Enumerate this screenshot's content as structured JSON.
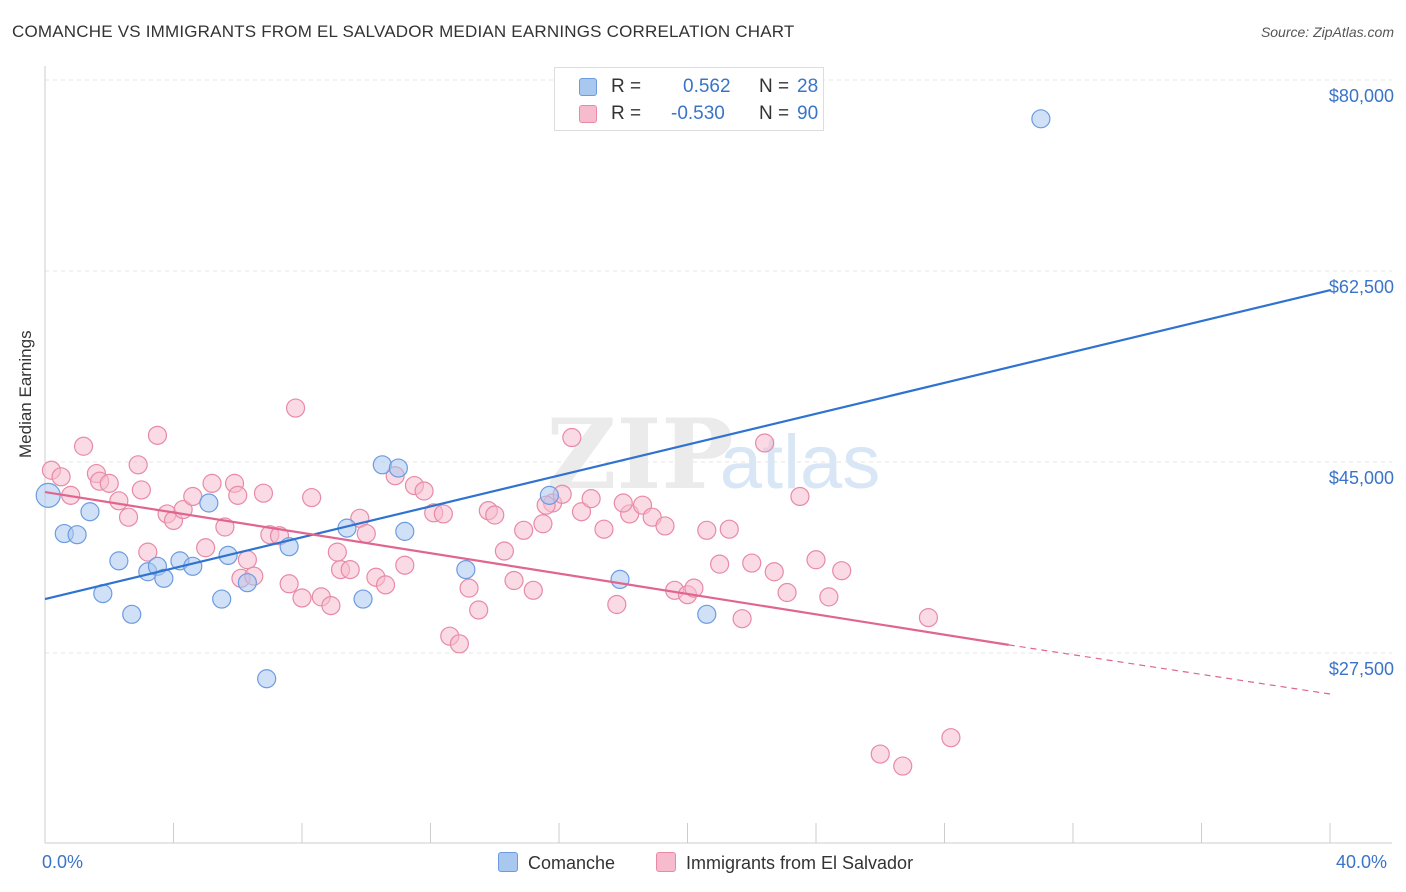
{
  "title": "COMANCHE VS IMMIGRANTS FROM EL SALVADOR MEDIAN EARNINGS CORRELATION CHART",
  "source": "Source: ZipAtlas.com",
  "watermark": {
    "zip": "ZIP",
    "atlas": "atlas"
  },
  "legend": {
    "rows": [
      {
        "r_label": "R =",
        "r_value": "0.562",
        "n_label": "N =",
        "n_value": "28",
        "color": "#a9c8f0",
        "border": "#6d9be0"
      },
      {
        "r_label": "R =",
        "r_value": "-0.530",
        "n_label": "N =",
        "n_value": "90",
        "color": "#f6bccd",
        "border": "#e88aa6"
      }
    ]
  },
  "bottom_legend": {
    "series1": "Comanche",
    "series2": "Immigrants from El Salvador"
  },
  "chart_data": {
    "type": "scatter",
    "ylabel": "Median Earnings",
    "xlabel": "",
    "xlim": [
      0,
      40
    ],
    "ylim": [
      9000,
      82500
    ],
    "x_tick_labels": [
      "0.0%",
      "40.0%"
    ],
    "y_ticks": [
      {
        "value": 80000,
        "label": "$80,000"
      },
      {
        "value": 62500,
        "label": "$62,500"
      },
      {
        "value": 45000,
        "label": "$45,000"
      },
      {
        "value": 27500,
        "label": "$27,500"
      }
    ],
    "series": [
      {
        "name": "Comanche",
        "color": "#6d9be0",
        "fill": "#a9c8f0",
        "trend": {
          "x0": 0,
          "y0": 34000,
          "x1": 40,
          "y1": 62300
        },
        "points": [
          [
            0.1,
            43500
          ],
          [
            0.6,
            40000
          ],
          [
            1.0,
            39900
          ],
          [
            1.4,
            42000
          ],
          [
            1.8,
            34500
          ],
          [
            2.3,
            37500
          ],
          [
            2.7,
            32600
          ],
          [
            3.2,
            36500
          ],
          [
            3.5,
            37000
          ],
          [
            3.7,
            35900
          ],
          [
            4.2,
            37500
          ],
          [
            4.6,
            37000
          ],
          [
            5.1,
            42800
          ],
          [
            5.5,
            34000
          ],
          [
            5.7,
            38000
          ],
          [
            6.3,
            35500
          ],
          [
            6.9,
            26700
          ],
          [
            7.6,
            38800
          ],
          [
            9.4,
            40500
          ],
          [
            9.9,
            34000
          ],
          [
            10.5,
            46300
          ],
          [
            11.0,
            46000
          ],
          [
            11.2,
            40200
          ],
          [
            13.1,
            36700
          ],
          [
            15.7,
            43500
          ],
          [
            17.9,
            35800
          ],
          [
            20.6,
            32600
          ],
          [
            31.0,
            78000
          ]
        ]
      },
      {
        "name": "Immigrants from El Salvador",
        "color": "#e88aa6",
        "fill": "#f6bccd",
        "trend": {
          "x0": 0,
          "y0": 43800,
          "x1": 30.0,
          "y1": 29800,
          "dash_x1": 40,
          "dash_y1": 25300
        },
        "points": [
          [
            0.2,
            45800
          ],
          [
            0.5,
            45200
          ],
          [
            0.8,
            43500
          ],
          [
            1.2,
            48000
          ],
          [
            1.6,
            45500
          ],
          [
            1.7,
            44800
          ],
          [
            2.0,
            44600
          ],
          [
            2.3,
            43000
          ],
          [
            2.6,
            41500
          ],
          [
            2.9,
            46300
          ],
          [
            3.2,
            38300
          ],
          [
            3.5,
            49000
          ],
          [
            3.8,
            41800
          ],
          [
            4.0,
            41200
          ],
          [
            4.3,
            42200
          ],
          [
            4.6,
            43400
          ],
          [
            5.0,
            38700
          ],
          [
            5.2,
            44600
          ],
          [
            5.6,
            40600
          ],
          [
            5.9,
            44600
          ],
          [
            6.1,
            35900
          ],
          [
            6.3,
            37600
          ],
          [
            6.5,
            36100
          ],
          [
            6.8,
            43700
          ],
          [
            7.0,
            39900
          ],
          [
            7.3,
            39800
          ],
          [
            7.6,
            35400
          ],
          [
            7.8,
            51500
          ],
          [
            8.0,
            34100
          ],
          [
            8.3,
            43300
          ],
          [
            8.6,
            34200
          ],
          [
            8.9,
            33400
          ],
          [
            9.2,
            36700
          ],
          [
            9.5,
            36700
          ],
          [
            9.8,
            41400
          ],
          [
            10.0,
            40000
          ],
          [
            10.3,
            36000
          ],
          [
            10.6,
            35300
          ],
          [
            10.9,
            45300
          ],
          [
            11.2,
            37100
          ],
          [
            11.5,
            44400
          ],
          [
            11.8,
            43900
          ],
          [
            12.1,
            41900
          ],
          [
            12.4,
            41800
          ],
          [
            12.6,
            30600
          ],
          [
            12.9,
            29900
          ],
          [
            13.2,
            35000
          ],
          [
            13.5,
            33000
          ],
          [
            13.8,
            42100
          ],
          [
            14.0,
            41700
          ],
          [
            14.3,
            38400
          ],
          [
            14.6,
            35700
          ],
          [
            14.9,
            40300
          ],
          [
            15.2,
            34800
          ],
          [
            15.5,
            40900
          ],
          [
            15.8,
            42800
          ],
          [
            16.1,
            43600
          ],
          [
            16.4,
            48800
          ],
          [
            16.7,
            42000
          ],
          [
            17.0,
            43200
          ],
          [
            17.4,
            40400
          ],
          [
            17.8,
            33500
          ],
          [
            18.2,
            41800
          ],
          [
            18.6,
            42600
          ],
          [
            18.9,
            41500
          ],
          [
            19.3,
            40700
          ],
          [
            19.6,
            34800
          ],
          [
            20.0,
            34400
          ],
          [
            20.2,
            35000
          ],
          [
            20.6,
            40300
          ],
          [
            21.0,
            37200
          ],
          [
            21.3,
            40400
          ],
          [
            21.7,
            32200
          ],
          [
            22.0,
            37300
          ],
          [
            22.4,
            48300
          ],
          [
            22.7,
            36500
          ],
          [
            23.1,
            34600
          ],
          [
            23.5,
            43400
          ],
          [
            24.0,
            37600
          ],
          [
            24.4,
            34200
          ],
          [
            24.8,
            36600
          ],
          [
            26.0,
            19800
          ],
          [
            26.7,
            18700
          ],
          [
            27.5,
            32300
          ],
          [
            28.2,
            21300
          ],
          [
            15.6,
            42600
          ],
          [
            18.0,
            42800
          ],
          [
            9.1,
            38300
          ],
          [
            3.0,
            44000
          ],
          [
            6.0,
            43500
          ]
        ]
      }
    ]
  }
}
